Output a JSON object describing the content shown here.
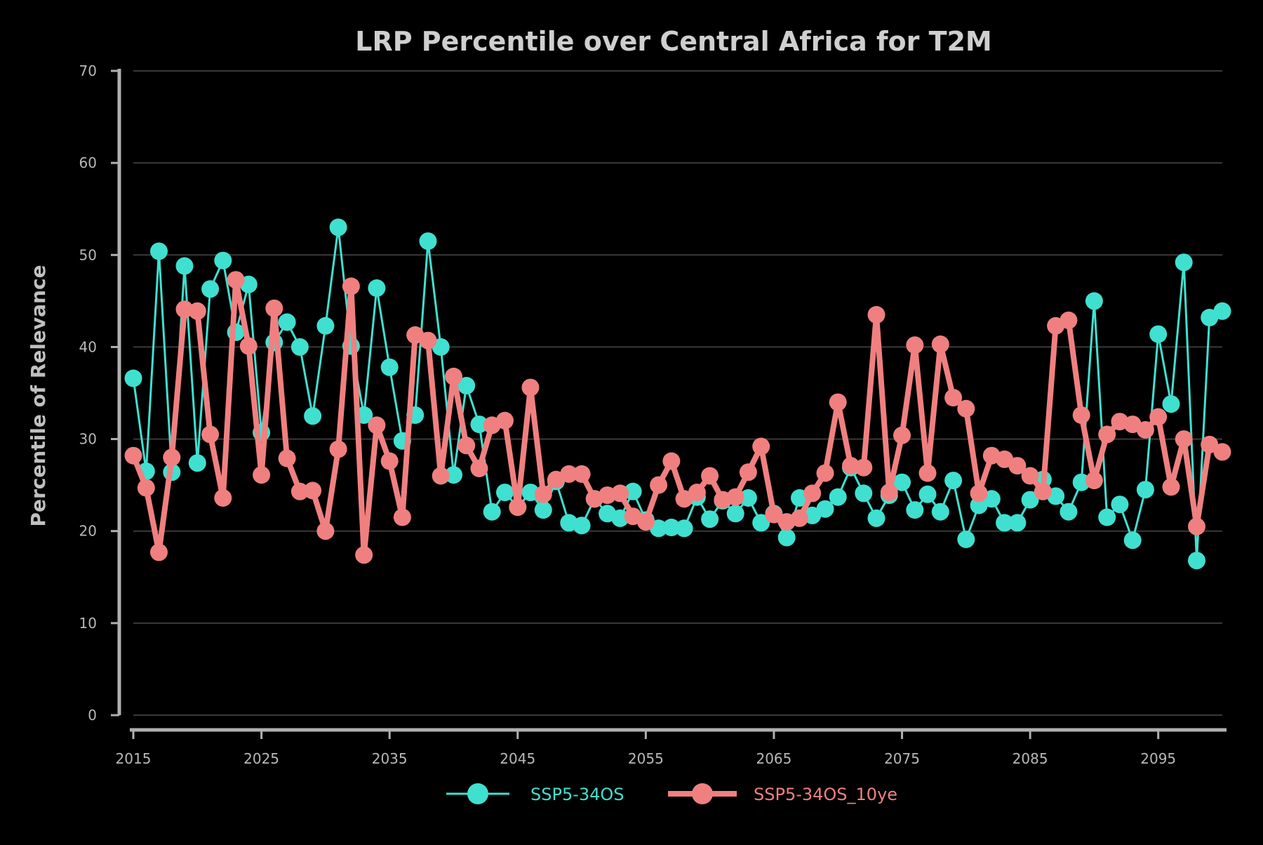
{
  "chart_data": {
    "type": "line",
    "title": "LRP Percentile over Central Africa for T2M",
    "xlabel": "",
    "ylabel": "Percentile of Relevance",
    "xlim": [
      2015,
      2100
    ],
    "ylim": [
      0,
      70
    ],
    "x_ticks": [
      "2015",
      "2025",
      "2035",
      "2045",
      "2055",
      "2065",
      "2075",
      "2085",
      "2095"
    ],
    "y_ticks": [
      "0",
      "10",
      "20",
      "30",
      "40",
      "50",
      "60",
      "70"
    ],
    "grid": true,
    "legend_position": "bottom-center",
    "x": [
      2015,
      2016,
      2017,
      2018,
      2019,
      2020,
      2021,
      2022,
      2023,
      2024,
      2025,
      2026,
      2027,
      2028,
      2029,
      2030,
      2031,
      2032,
      2033,
      2034,
      2035,
      2036,
      2037,
      2038,
      2039,
      2040,
      2041,
      2042,
      2043,
      2044,
      2045,
      2046,
      2047,
      2048,
      2049,
      2050,
      2051,
      2052,
      2053,
      2054,
      2055,
      2056,
      2057,
      2058,
      2059,
      2060,
      2061,
      2062,
      2063,
      2064,
      2065,
      2066,
      2067,
      2068,
      2069,
      2070,
      2071,
      2072,
      2073,
      2074,
      2075,
      2076,
      2077,
      2078,
      2079,
      2080,
      2081,
      2082,
      2083,
      2084,
      2085,
      2086,
      2087,
      2088,
      2089,
      2090,
      2091,
      2092,
      2093,
      2094,
      2095,
      2096,
      2097,
      2098,
      2099,
      2100
    ],
    "series": [
      {
        "name": "SSP5-34OS",
        "color": "#40e0d0",
        "line_width": 3,
        "values": [
          36.6,
          26.5,
          50.4,
          26.4,
          48.8,
          27.4,
          46.3,
          49.4,
          41.6,
          46.8,
          30.7,
          40.5,
          42.7,
          40.0,
          32.5,
          42.3,
          53.0,
          40.1,
          32.6,
          46.4,
          37.8,
          29.8,
          32.6,
          51.5,
          40.0,
          26.1,
          35.8,
          31.6,
          22.1,
          24.2,
          22.6,
          24.2,
          22.3,
          25.4,
          20.9,
          20.6,
          23.5,
          21.9,
          21.4,
          24.3,
          21.2,
          20.3,
          20.4,
          20.3,
          23.7,
          21.3,
          23.3,
          21.9,
          23.6,
          20.9,
          21.9,
          19.3,
          23.6,
          21.7,
          22.4,
          23.7,
          26.9,
          24.1,
          21.4,
          23.9,
          25.3,
          22.3,
          24.0,
          22.1,
          25.5,
          19.1,
          22.8,
          23.5,
          20.9,
          20.9,
          23.4,
          25.6,
          23.8,
          22.1,
          25.3,
          45.0,
          21.5,
          22.9,
          19.0,
          24.5,
          41.4,
          33.8,
          49.2,
          16.8,
          43.2,
          43.9
        ]
      },
      {
        "name": "SSP5-34OS_10ye",
        "color": "#f08080",
        "line_width": 8,
        "values": [
          28.2,
          24.7,
          17.7,
          28.0,
          44.1,
          43.9,
          30.5,
          23.6,
          47.3,
          40.1,
          26.1,
          44.2,
          27.9,
          24.3,
          24.4,
          20.0,
          28.9,
          46.6,
          17.4,
          31.5,
          27.6,
          21.5,
          41.3,
          40.7,
          26.0,
          36.8,
          29.3,
          26.8,
          31.5,
          32.0,
          22.6,
          35.6,
          24.0,
          25.6,
          26.2,
          26.2,
          23.5,
          23.9,
          24.1,
          21.6,
          21.0,
          25.0,
          27.6,
          23.5,
          24.2,
          26.0,
          23.4,
          23.7,
          26.4,
          29.2,
          21.8,
          21.0,
          21.4,
          24.1,
          26.3,
          34.0,
          27.1,
          26.9,
          43.5,
          24.2,
          30.4,
          40.2,
          26.3,
          40.3,
          34.5,
          33.3,
          24.1,
          28.2,
          27.8,
          27.1,
          26.0,
          24.3,
          42.3,
          42.9,
          32.6,
          25.5,
          30.5,
          31.9,
          31.6,
          31.0,
          32.4,
          24.8,
          30.0,
          20.5,
          29.4,
          28.6
        ]
      }
    ]
  }
}
